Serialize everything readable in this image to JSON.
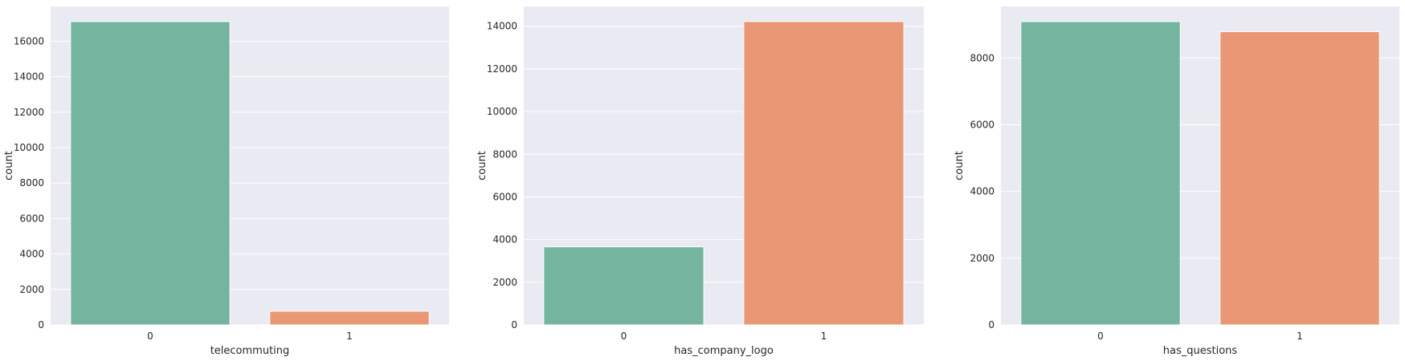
{
  "chart_data": [
    {
      "type": "bar",
      "categories": [
        "0",
        "1"
      ],
      "values": [
        17110,
        770
      ],
      "xlabel": "telecommuting",
      "ylabel": "count",
      "ylim": [
        0,
        17965
      ],
      "yticks": [
        0,
        2000,
        4000,
        6000,
        8000,
        10000,
        12000,
        14000,
        16000
      ],
      "colors": [
        "#75b5a0",
        "#e99774"
      ],
      "grid": true
    },
    {
      "type": "bar",
      "categories": [
        "0",
        "1"
      ],
      "values": [
        3660,
        14220
      ],
      "xlabel": "has_company_logo",
      "ylabel": "count",
      "ylim": [
        0,
        14930
      ],
      "yticks": [
        0,
        2000,
        4000,
        6000,
        8000,
        10000,
        12000,
        14000
      ],
      "colors": [
        "#75b5a0",
        "#e99774"
      ],
      "grid": true
    },
    {
      "type": "bar",
      "categories": [
        "0",
        "1"
      ],
      "values": [
        9090,
        8790
      ],
      "xlabel": "has_questions",
      "ylabel": "count",
      "ylim": [
        0,
        9545
      ],
      "yticks": [
        0,
        2000,
        4000,
        6000,
        8000
      ],
      "colors": [
        "#75b5a0",
        "#e99774"
      ],
      "grid": true
    }
  ]
}
